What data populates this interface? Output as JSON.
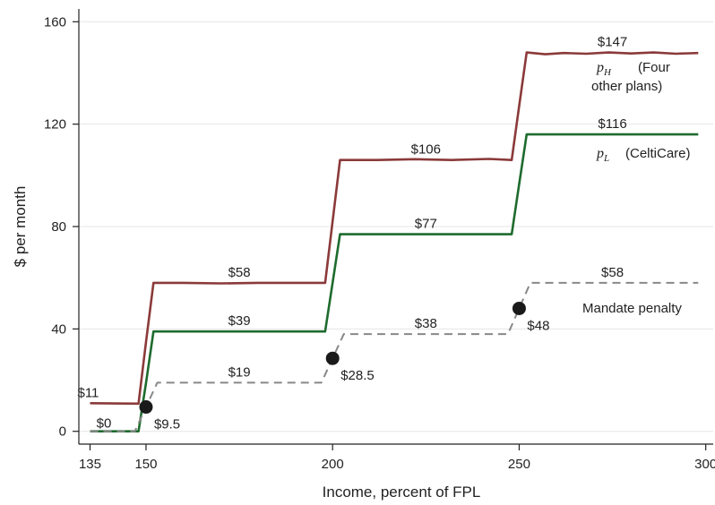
{
  "chart_data": {
    "type": "line",
    "title": "",
    "xlabel": "Income, percent of FPL",
    "ylabel": "$ per month",
    "xlim": [
      132,
      302
    ],
    "ylim": [
      -5,
      165
    ],
    "xticks": [
      135,
      150,
      200,
      250,
      300
    ],
    "yticks": [
      0,
      40,
      80,
      120,
      160
    ],
    "grid": "horizontal",
    "series": [
      {
        "key": "pH",
        "color": "#8b3a3a",
        "style": "solid",
        "points": [
          [
            135,
            11
          ],
          [
            148,
            10.8
          ],
          [
            150,
            35
          ],
          [
            152,
            58
          ],
          [
            160,
            58
          ],
          [
            170,
            57.8
          ],
          [
            180,
            58
          ],
          [
            190,
            58
          ],
          [
            198,
            58
          ],
          [
            200,
            82
          ],
          [
            202,
            106
          ],
          [
            212,
            106
          ],
          [
            222,
            106.3
          ],
          [
            232,
            106
          ],
          [
            242,
            106.4
          ],
          [
            248,
            106
          ],
          [
            250,
            127
          ],
          [
            252,
            148
          ],
          [
            257,
            147.3
          ],
          [
            262,
            147.8
          ],
          [
            268,
            147.5
          ],
          [
            274,
            148
          ],
          [
            280,
            147.6
          ],
          [
            286,
            148
          ],
          [
            292,
            147.5
          ],
          [
            298,
            147.8
          ]
        ]
      },
      {
        "key": "pL",
        "color": "#1e6b2e",
        "style": "solid",
        "points": [
          [
            135,
            0
          ],
          [
            148,
            0
          ],
          [
            150,
            19
          ],
          [
            152,
            39
          ],
          [
            198,
            39
          ],
          [
            200,
            58
          ],
          [
            202,
            77
          ],
          [
            248,
            77
          ],
          [
            250,
            96.5
          ],
          [
            252,
            116
          ],
          [
            298,
            116
          ]
        ]
      },
      {
        "key": "penalty",
        "name": "Mandate penalty",
        "color": "#888888",
        "style": "dashed",
        "points": [
          [
            135,
            0
          ],
          [
            147,
            0
          ],
          [
            150,
            9.5
          ],
          [
            153,
            19
          ],
          [
            197,
            19
          ],
          [
            200,
            28.5
          ],
          [
            203,
            38
          ],
          [
            247,
            38
          ],
          [
            250,
            48
          ],
          [
            253,
            58
          ],
          [
            298,
            58
          ]
        ]
      }
    ],
    "markers": [
      {
        "x": 150,
        "y": 9.5,
        "label": "$9.5"
      },
      {
        "x": 200,
        "y": 28.5,
        "label": "$28.5"
      },
      {
        "x": 250,
        "y": 48,
        "label": "$48"
      }
    ],
    "annotations": [
      {
        "x": 135,
        "y": 11,
        "text": "$11"
      },
      {
        "x": 138,
        "y": 0,
        "text": "$0"
      },
      {
        "x": 175,
        "y": 58,
        "text": "$58"
      },
      {
        "x": 175,
        "y": 39,
        "text": "$39"
      },
      {
        "x": 175,
        "y": 19,
        "text": "$19"
      },
      {
        "x": 225,
        "y": 106,
        "text": "$106"
      },
      {
        "x": 225,
        "y": 77,
        "text": "$77"
      },
      {
        "x": 225,
        "y": 38,
        "text": "$38"
      },
      {
        "x": 275,
        "y": 148,
        "text": "$147"
      },
      {
        "x": 275,
        "y": 116,
        "text": "$116"
      },
      {
        "x": 275,
        "y": 58,
        "text": "$58"
      }
    ],
    "series_labels": [
      {
        "math": "p",
        "sub": "H",
        "text": "(Four",
        "text2": "other plans)"
      },
      {
        "math": "p",
        "sub": "L",
        "text": "(CeltiCare)"
      },
      {
        "text": "Mandate penalty"
      }
    ]
  }
}
